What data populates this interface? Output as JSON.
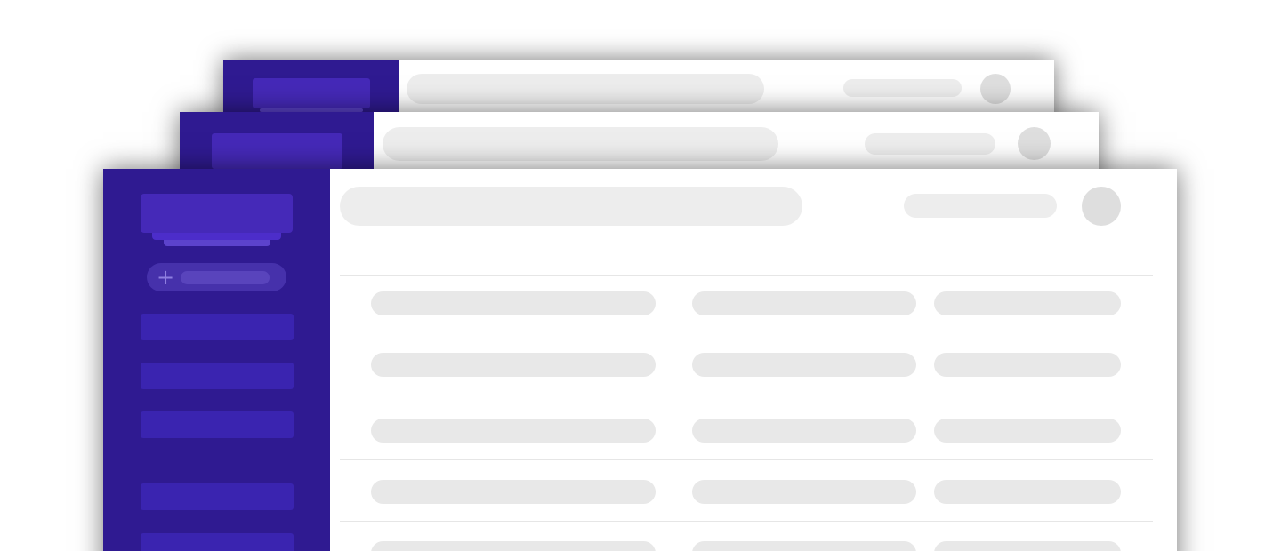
{
  "colors": {
    "sidebar_bg": "#2f1a91",
    "sidebar_item": "#3a24b0",
    "sidebar_header": "#4529b8",
    "sidebar_header_tab": "#5c43cc",
    "sidebar_divider": "#4a38a8",
    "add_button_bg": "#4631ab",
    "add_button_bar": "#5944bc",
    "add_button_icon": "#8e7ee0",
    "search_bar": "#ededed",
    "header_chip": "#ededed",
    "avatar": "#dedede",
    "row_placeholder": "#e8e8e8",
    "row_divider": "#e6e6e6",
    "content_bg": "#ffffff"
  },
  "icons": {
    "add": "plus-icon"
  },
  "add_button": {
    "symbol": "+"
  },
  "windows": [
    "back",
    "middle",
    "front"
  ],
  "front_window": {
    "sidebar_nav_item_count": 5,
    "table_row_count": 5,
    "table_column_count": 3
  }
}
